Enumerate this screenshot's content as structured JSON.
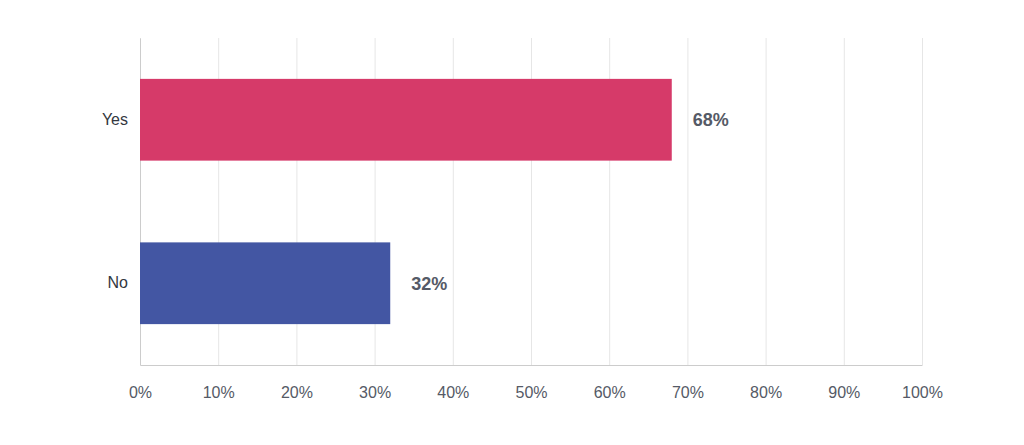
{
  "chart_data": {
    "type": "bar",
    "orientation": "horizontal",
    "categories": [
      "Yes",
      "No"
    ],
    "values": [
      68,
      32
    ],
    "value_labels": [
      "68%",
      "32%"
    ],
    "colors": [
      "#d63a69",
      "#4356a3"
    ],
    "xlim": [
      0,
      100
    ],
    "xticks": [
      {
        "value": 0,
        "label": "0%"
      },
      {
        "value": 10,
        "label": "10%"
      },
      {
        "value": 20,
        "label": "20%"
      },
      {
        "value": 30,
        "label": "30%"
      },
      {
        "value": 40,
        "label": "40%"
      },
      {
        "value": 50,
        "label": "50%"
      },
      {
        "value": 60,
        "label": "60%"
      },
      {
        "value": 70,
        "label": "70%"
      },
      {
        "value": 80,
        "label": "80%"
      },
      {
        "value": 90,
        "label": "90%"
      },
      {
        "value": 100,
        "label": "100%"
      }
    ],
    "grid": true,
    "data_labels": true
  }
}
